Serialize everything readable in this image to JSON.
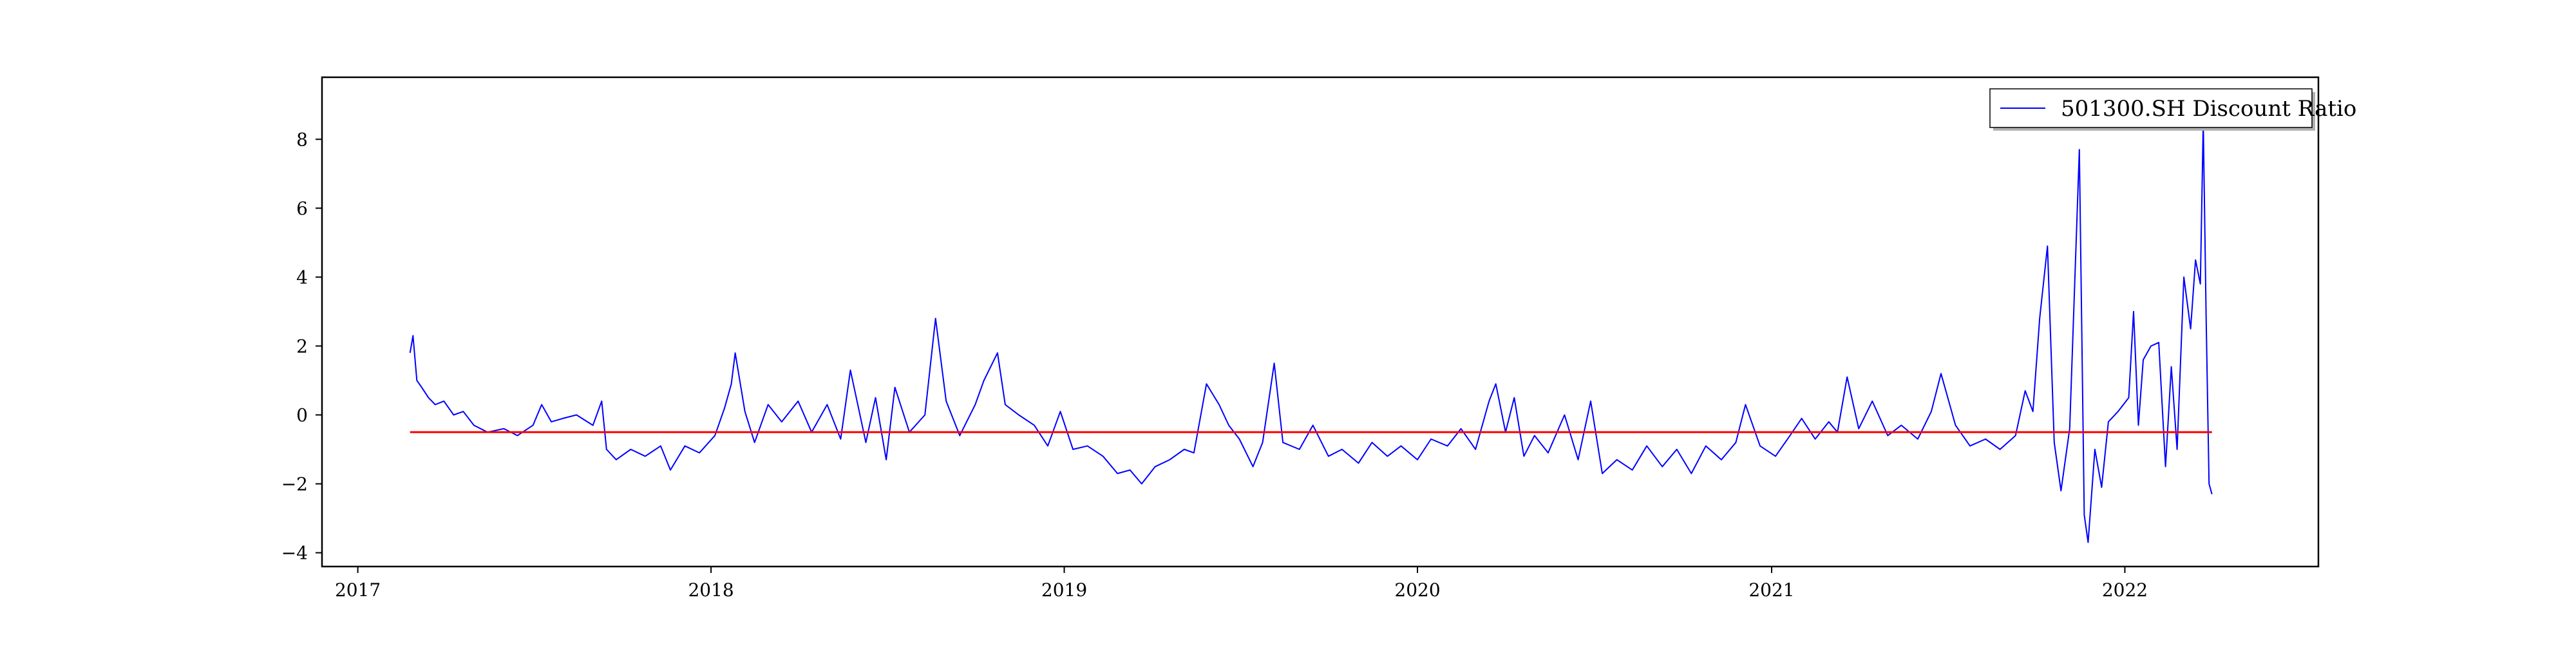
{
  "chart_data": {
    "type": "line",
    "title": "",
    "xlabel": "",
    "ylabel": "",
    "x_axis": {
      "type": "date",
      "range": [
        "2016-11-25",
        "2022-07-20"
      ],
      "ticks": [
        "2017-01-01",
        "2018-01-01",
        "2019-01-01",
        "2020-01-01",
        "2021-01-01",
        "2022-01-01"
      ],
      "tick_labels": [
        "2017",
        "2018",
        "2019",
        "2020",
        "2021",
        "2022"
      ]
    },
    "y_axis": {
      "range": [
        -4.4,
        9.8
      ],
      "ticks": [
        -4,
        -2,
        0,
        2,
        4,
        6,
        8
      ],
      "tick_labels": [
        "−4",
        "−2",
        "0",
        "2",
        "4",
        "6",
        "8"
      ]
    },
    "grid": false,
    "legend": {
      "placement": "upper right",
      "entries": [
        {
          "label": "501300.SH Discount Ratio",
          "color": "#0000ff"
        }
      ]
    },
    "series": [
      {
        "name": "501300.SH Discount Ratio",
        "color": "#0000ff",
        "style": "line",
        "points": [
          [
            "2017-02-24",
            1.8
          ],
          [
            "2017-02-27",
            2.3
          ],
          [
            "2017-03-03",
            1.0
          ],
          [
            "2017-03-08",
            0.8
          ],
          [
            "2017-03-15",
            0.5
          ],
          [
            "2017-03-22",
            0.3
          ],
          [
            "2017-03-31",
            0.4
          ],
          [
            "2017-04-10",
            0.0
          ],
          [
            "2017-04-20",
            0.1
          ],
          [
            "2017-05-01",
            -0.3
          ],
          [
            "2017-05-15",
            -0.5
          ],
          [
            "2017-06-01",
            -0.4
          ],
          [
            "2017-06-15",
            -0.6
          ],
          [
            "2017-07-01",
            -0.3
          ],
          [
            "2017-07-10",
            0.3
          ],
          [
            "2017-07-20",
            -0.2
          ],
          [
            "2017-08-01",
            -0.1
          ],
          [
            "2017-08-15",
            0.0
          ],
          [
            "2017-09-01",
            -0.3
          ],
          [
            "2017-09-10",
            0.4
          ],
          [
            "2017-09-15",
            -1.0
          ],
          [
            "2017-09-25",
            -1.3
          ],
          [
            "2017-10-10",
            -1.0
          ],
          [
            "2017-10-25",
            -1.2
          ],
          [
            "2017-11-10",
            -0.9
          ],
          [
            "2017-11-20",
            -1.6
          ],
          [
            "2017-12-05",
            -0.9
          ],
          [
            "2017-12-20",
            -1.1
          ],
          [
            "2018-01-05",
            -0.6
          ],
          [
            "2018-01-15",
            0.2
          ],
          [
            "2018-01-22",
            0.9
          ],
          [
            "2018-01-26",
            1.8
          ],
          [
            "2018-02-05",
            0.1
          ],
          [
            "2018-02-15",
            -0.8
          ],
          [
            "2018-03-01",
            0.3
          ],
          [
            "2018-03-15",
            -0.2
          ],
          [
            "2018-04-01",
            0.4
          ],
          [
            "2018-04-15",
            -0.5
          ],
          [
            "2018-05-01",
            0.3
          ],
          [
            "2018-05-15",
            -0.7
          ],
          [
            "2018-05-25",
            1.3
          ],
          [
            "2018-06-10",
            -0.8
          ],
          [
            "2018-06-20",
            0.5
          ],
          [
            "2018-07-01",
            -1.3
          ],
          [
            "2018-07-10",
            0.8
          ],
          [
            "2018-07-25",
            -0.5
          ],
          [
            "2018-08-10",
            0.0
          ],
          [
            "2018-08-21",
            2.8
          ],
          [
            "2018-09-01",
            0.4
          ],
          [
            "2018-09-15",
            -0.6
          ],
          [
            "2018-10-01",
            0.3
          ],
          [
            "2018-10-10",
            1.0
          ],
          [
            "2018-10-24",
            1.8
          ],
          [
            "2018-11-01",
            0.3
          ],
          [
            "2018-11-15",
            0.0
          ],
          [
            "2018-12-01",
            -0.3
          ],
          [
            "2018-12-15",
            -0.9
          ],
          [
            "2018-12-28",
            0.1
          ],
          [
            "2019-01-10",
            -1.0
          ],
          [
            "2019-01-25",
            -0.9
          ],
          [
            "2019-02-10",
            -1.2
          ],
          [
            "2019-02-25",
            -1.7
          ],
          [
            "2019-03-10",
            -1.6
          ],
          [
            "2019-03-22",
            -2.0
          ],
          [
            "2019-04-05",
            -1.5
          ],
          [
            "2019-04-20",
            -1.3
          ],
          [
            "2019-05-05",
            -1.0
          ],
          [
            "2019-05-15",
            -1.1
          ],
          [
            "2019-05-28",
            0.9
          ],
          [
            "2019-06-10",
            0.3
          ],
          [
            "2019-06-20",
            -0.3
          ],
          [
            "2019-07-01",
            -0.7
          ],
          [
            "2019-07-15",
            -1.5
          ],
          [
            "2019-07-25",
            -0.8
          ],
          [
            "2019-08-06",
            1.5
          ],
          [
            "2019-08-15",
            -0.8
          ],
          [
            "2019-09-01",
            -1.0
          ],
          [
            "2019-09-15",
            -0.3
          ],
          [
            "2019-10-01",
            -1.2
          ],
          [
            "2019-10-15",
            -1.0
          ],
          [
            "2019-11-01",
            -1.4
          ],
          [
            "2019-11-15",
            -0.8
          ],
          [
            "2019-12-01",
            -1.2
          ],
          [
            "2019-12-15",
            -0.9
          ],
          [
            "2020-01-01",
            -1.3
          ],
          [
            "2020-01-15",
            -0.7
          ],
          [
            "2020-02-01",
            -0.9
          ],
          [
            "2020-02-15",
            -0.4
          ],
          [
            "2020-03-01",
            -1.0
          ],
          [
            "2020-03-15",
            0.4
          ],
          [
            "2020-03-22",
            0.9
          ],
          [
            "2020-04-01",
            -0.5
          ],
          [
            "2020-04-10",
            0.5
          ],
          [
            "2020-04-20",
            -1.2
          ],
          [
            "2020-05-01",
            -0.6
          ],
          [
            "2020-05-15",
            -1.1
          ],
          [
            "2020-06-01",
            0.0
          ],
          [
            "2020-06-15",
            -1.3
          ],
          [
            "2020-06-28",
            0.4
          ],
          [
            "2020-07-10",
            -1.7
          ],
          [
            "2020-07-25",
            -1.3
          ],
          [
            "2020-08-10",
            -1.6
          ],
          [
            "2020-08-25",
            -0.9
          ],
          [
            "2020-09-10",
            -1.5
          ],
          [
            "2020-09-25",
            -1.0
          ],
          [
            "2020-10-10",
            -1.7
          ],
          [
            "2020-10-25",
            -0.9
          ],
          [
            "2020-11-10",
            -1.3
          ],
          [
            "2020-11-25",
            -0.8
          ],
          [
            "2020-12-05",
            0.3
          ],
          [
            "2020-12-20",
            -0.9
          ],
          [
            "2021-01-05",
            -1.2
          ],
          [
            "2021-01-20",
            -0.6
          ],
          [
            "2021-02-01",
            -0.1
          ],
          [
            "2021-02-15",
            -0.7
          ],
          [
            "2021-03-01",
            -0.2
          ],
          [
            "2021-03-10",
            -0.5
          ],
          [
            "2021-03-20",
            1.1
          ],
          [
            "2021-04-01",
            -0.4
          ],
          [
            "2021-04-15",
            0.4
          ],
          [
            "2021-05-01",
            -0.6
          ],
          [
            "2021-05-15",
            -0.3
          ],
          [
            "2021-06-01",
            -0.7
          ],
          [
            "2021-06-15",
            0.1
          ],
          [
            "2021-06-25",
            1.2
          ],
          [
            "2021-07-10",
            -0.3
          ],
          [
            "2021-07-25",
            -0.9
          ],
          [
            "2021-08-10",
            -0.7
          ],
          [
            "2021-08-25",
            -1.0
          ],
          [
            "2021-09-10",
            -0.6
          ],
          [
            "2021-09-20",
            0.7
          ],
          [
            "2021-09-28",
            0.1
          ],
          [
            "2021-10-05",
            2.8
          ],
          [
            "2021-10-13",
            4.9
          ],
          [
            "2021-10-20",
            -0.8
          ],
          [
            "2021-10-27",
            -2.2
          ],
          [
            "2021-11-05",
            -0.4
          ],
          [
            "2021-11-15",
            7.7
          ],
          [
            "2021-11-20",
            -2.9
          ],
          [
            "2021-11-24",
            -3.7
          ],
          [
            "2021-12-01",
            -1.0
          ],
          [
            "2021-12-08",
            -2.1
          ],
          [
            "2021-12-15",
            -0.2
          ],
          [
            "2021-12-25",
            0.1
          ],
          [
            "2022-01-05",
            0.5
          ],
          [
            "2022-01-10",
            3.0
          ],
          [
            "2022-01-15",
            -0.3
          ],
          [
            "2022-01-20",
            1.6
          ],
          [
            "2022-01-28",
            2.0
          ],
          [
            "2022-02-05",
            2.1
          ],
          [
            "2022-02-12",
            -1.5
          ],
          [
            "2022-02-18",
            1.4
          ],
          [
            "2022-02-24",
            -1.0
          ],
          [
            "2022-03-03",
            4.0
          ],
          [
            "2022-03-10",
            2.5
          ],
          [
            "2022-03-15",
            4.5
          ],
          [
            "2022-03-20",
            3.8
          ],
          [
            "2022-03-23",
            8.5
          ],
          [
            "2022-03-26",
            2.8
          ],
          [
            "2022-03-29",
            -2.0
          ],
          [
            "2022-04-01",
            -2.3
          ]
        ]
      },
      {
        "name": "",
        "color": "#ff0000",
        "style": "horizontal-line",
        "x_range": [
          "2017-02-24",
          "2022-04-01"
        ],
        "value": -0.5
      }
    ]
  }
}
